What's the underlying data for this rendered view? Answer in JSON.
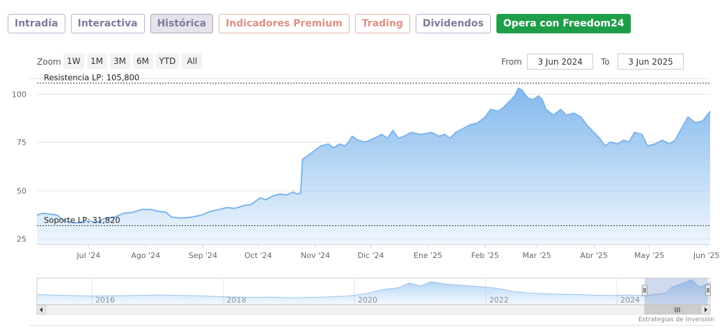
{
  "tabs": [
    {
      "label": "Intradía",
      "style": "normal"
    },
    {
      "label": "Interactiva",
      "style": "normal"
    },
    {
      "label": "Histórica",
      "style": "active"
    },
    {
      "label": "Indicadores Premium",
      "style": "premium"
    },
    {
      "label": "Trading",
      "style": "premium"
    },
    {
      "label": "Dividendos",
      "style": "normal"
    },
    {
      "label": "Opera con Freedom24",
      "style": "cta"
    }
  ],
  "zoom": {
    "label": "Zoom",
    "buttons": [
      "1W",
      "1M",
      "3M",
      "6M",
      "YTD",
      "All"
    ]
  },
  "range": {
    "from_label": "From",
    "from_value": "3 Jun 2024",
    "to_label": "To",
    "to_value": "3 Jun 2025"
  },
  "credit": "Estrategias de Inversión",
  "colors": {
    "line": "#7cb5ec",
    "accent_green": "#1f9e49",
    "premium": "#df8f84",
    "tab_text": "#7e7a9d"
  },
  "chart_data": {
    "type": "area",
    "ylim": [
      22,
      108
    ],
    "yticks": [
      25,
      50,
      75,
      100
    ],
    "xlim": [
      "2024-06-03",
      "2025-06-03"
    ],
    "grid": true,
    "xticks": [
      {
        "date": "2024-07-01",
        "label": "Jul '24"
      },
      {
        "date": "2024-08-01",
        "label": "Ago '24"
      },
      {
        "date": "2024-09-01",
        "label": "Sep '24"
      },
      {
        "date": "2024-10-01",
        "label": "Oct '24"
      },
      {
        "date": "2024-11-01",
        "label": "Nov '24"
      },
      {
        "date": "2024-12-01",
        "label": "Dic '24"
      },
      {
        "date": "2025-01-01",
        "label": "Ene '25"
      },
      {
        "date": "2025-02-01",
        "label": "Feb '25"
      },
      {
        "date": "2025-03-01",
        "label": "Mar '25"
      },
      {
        "date": "2025-04-01",
        "label": "Abr '25"
      },
      {
        "date": "2025-05-01",
        "label": "May '25"
      },
      {
        "date": "2025-06-01",
        "label": "Jun '25"
      }
    ],
    "plotlines": [
      {
        "label": "Resistencia LP: 105,800",
        "value": 105.8
      },
      {
        "label": "Soporte LP: 31,820",
        "value": 31.82
      }
    ],
    "series": [
      {
        "points": [
          [
            "2024-06-03",
            37
          ],
          [
            "2024-06-06",
            38
          ],
          [
            "2024-06-11",
            37.5
          ],
          [
            "2024-06-14",
            37
          ],
          [
            "2024-06-18",
            34
          ],
          [
            "2024-06-24",
            33
          ],
          [
            "2024-06-28",
            33.5
          ],
          [
            "2024-07-02",
            34
          ],
          [
            "2024-07-05",
            33
          ],
          [
            "2024-07-10",
            35.5
          ],
          [
            "2024-07-15",
            36
          ],
          [
            "2024-07-20",
            38
          ],
          [
            "2024-07-25",
            38.5
          ],
          [
            "2024-07-30",
            40
          ],
          [
            "2024-08-04",
            40
          ],
          [
            "2024-08-08",
            39
          ],
          [
            "2024-08-12",
            38.5
          ],
          [
            "2024-08-15",
            36
          ],
          [
            "2024-08-20",
            35.5
          ],
          [
            "2024-08-26",
            36
          ],
          [
            "2024-08-31",
            37
          ],
          [
            "2024-09-05",
            39
          ],
          [
            "2024-09-10",
            40
          ],
          [
            "2024-09-14",
            41
          ],
          [
            "2024-09-18",
            40.5
          ],
          [
            "2024-09-23",
            42
          ],
          [
            "2024-09-27",
            42.5
          ],
          [
            "2024-10-02",
            46
          ],
          [
            "2024-10-05",
            45
          ],
          [
            "2024-10-09",
            47
          ],
          [
            "2024-10-13",
            48
          ],
          [
            "2024-10-16",
            47.5
          ],
          [
            "2024-10-20",
            49
          ],
          [
            "2024-10-22",
            48
          ],
          [
            "2024-10-24",
            48.5
          ],
          [
            "2024-10-25",
            66
          ],
          [
            "2024-10-28",
            68
          ],
          [
            "2024-11-01",
            71
          ],
          [
            "2024-11-04",
            73
          ],
          [
            "2024-11-08",
            74
          ],
          [
            "2024-11-11",
            72
          ],
          [
            "2024-11-14",
            74
          ],
          [
            "2024-11-17",
            73
          ],
          [
            "2024-11-19",
            75
          ],
          [
            "2024-11-21",
            78
          ],
          [
            "2024-11-24",
            76
          ],
          [
            "2024-11-28",
            75
          ],
          [
            "2024-12-03",
            77
          ],
          [
            "2024-12-07",
            79
          ],
          [
            "2024-12-10",
            77
          ],
          [
            "2024-12-13",
            81
          ],
          [
            "2024-12-16",
            77
          ],
          [
            "2024-12-19",
            78
          ],
          [
            "2024-12-23",
            80
          ],
          [
            "2024-12-28",
            79
          ],
          [
            "2025-01-03",
            80
          ],
          [
            "2025-01-07",
            78
          ],
          [
            "2025-01-10",
            79
          ],
          [
            "2025-01-13",
            77
          ],
          [
            "2025-01-16",
            80
          ],
          [
            "2025-01-20",
            82
          ],
          [
            "2025-01-24",
            84
          ],
          [
            "2025-01-28",
            85
          ],
          [
            "2025-02-01",
            88
          ],
          [
            "2025-02-04",
            92
          ],
          [
            "2025-02-08",
            91
          ],
          [
            "2025-02-11",
            93
          ],
          [
            "2025-02-14",
            96
          ],
          [
            "2025-02-17",
            99
          ],
          [
            "2025-02-19",
            103
          ],
          [
            "2025-02-21",
            102
          ],
          [
            "2025-02-24",
            98
          ],
          [
            "2025-02-27",
            97
          ],
          [
            "2025-03-02",
            99
          ],
          [
            "2025-03-04",
            97
          ],
          [
            "2025-03-06",
            92
          ],
          [
            "2025-03-10",
            89
          ],
          [
            "2025-03-14",
            92
          ],
          [
            "2025-03-17",
            89
          ],
          [
            "2025-03-21",
            90
          ],
          [
            "2025-03-25",
            88
          ],
          [
            "2025-03-28",
            84
          ],
          [
            "2025-04-01",
            80
          ],
          [
            "2025-04-04",
            77
          ],
          [
            "2025-04-07",
            73
          ],
          [
            "2025-04-10",
            75
          ],
          [
            "2025-04-14",
            74
          ],
          [
            "2025-04-17",
            76
          ],
          [
            "2025-04-20",
            75
          ],
          [
            "2025-04-23",
            80
          ],
          [
            "2025-04-27",
            79
          ],
          [
            "2025-04-30",
            73
          ],
          [
            "2025-05-04",
            74
          ],
          [
            "2025-05-08",
            76
          ],
          [
            "2025-05-12",
            74
          ],
          [
            "2025-05-15",
            76
          ],
          [
            "2025-05-19",
            83
          ],
          [
            "2025-05-22",
            88
          ],
          [
            "2025-05-26",
            85
          ],
          [
            "2025-05-30",
            86
          ],
          [
            "2025-06-03",
            91
          ]
        ]
      }
    ]
  },
  "navigator": {
    "year_labels": [
      "2016",
      "2018",
      "2020",
      "2022",
      "2024"
    ],
    "year_dates": [
      "2016-01-01",
      "2018-01-01",
      "2020-01-01",
      "2022-01-01",
      "2024-01-01"
    ],
    "xlim": [
      "2015-03-01",
      "2025-06-03"
    ],
    "ylim": [
      0,
      110
    ],
    "selection": [
      "2024-06-03",
      "2025-06-03"
    ],
    "points": [
      [
        "2015-03-01",
        42
      ],
      [
        "2015-06-01",
        40
      ],
      [
        "2015-09-01",
        38
      ],
      [
        "2016-01-01",
        35
      ],
      [
        "2016-06-01",
        37
      ],
      [
        "2017-01-01",
        40
      ],
      [
        "2017-06-01",
        38
      ],
      [
        "2018-01-01",
        33
      ],
      [
        "2018-06-01",
        30
      ],
      [
        "2018-10-01",
        31
      ],
      [
        "2019-01-01",
        28
      ],
      [
        "2019-06-01",
        30
      ],
      [
        "2019-12-01",
        36
      ],
      [
        "2020-03-01",
        45
      ],
      [
        "2020-06-01",
        62
      ],
      [
        "2020-09-01",
        70
      ],
      [
        "2020-11-01",
        90
      ],
      [
        "2021-01-01",
        78
      ],
      [
        "2021-03-01",
        95
      ],
      [
        "2021-06-01",
        85
      ],
      [
        "2021-09-01",
        80
      ],
      [
        "2021-12-01",
        75
      ],
      [
        "2022-03-01",
        68
      ],
      [
        "2022-06-01",
        55
      ],
      [
        "2022-09-01",
        48
      ],
      [
        "2022-12-01",
        45
      ],
      [
        "2023-03-01",
        43
      ],
      [
        "2023-06-01",
        42
      ],
      [
        "2023-09-01",
        39
      ],
      [
        "2023-12-01",
        38
      ],
      [
        "2024-03-01",
        40
      ],
      [
        "2024-06-03",
        37
      ],
      [
        "2024-10-01",
        48
      ],
      [
        "2024-11-01",
        72
      ],
      [
        "2025-02-19",
        103
      ],
      [
        "2025-04-07",
        73
      ],
      [
        "2025-06-03",
        91
      ]
    ]
  }
}
